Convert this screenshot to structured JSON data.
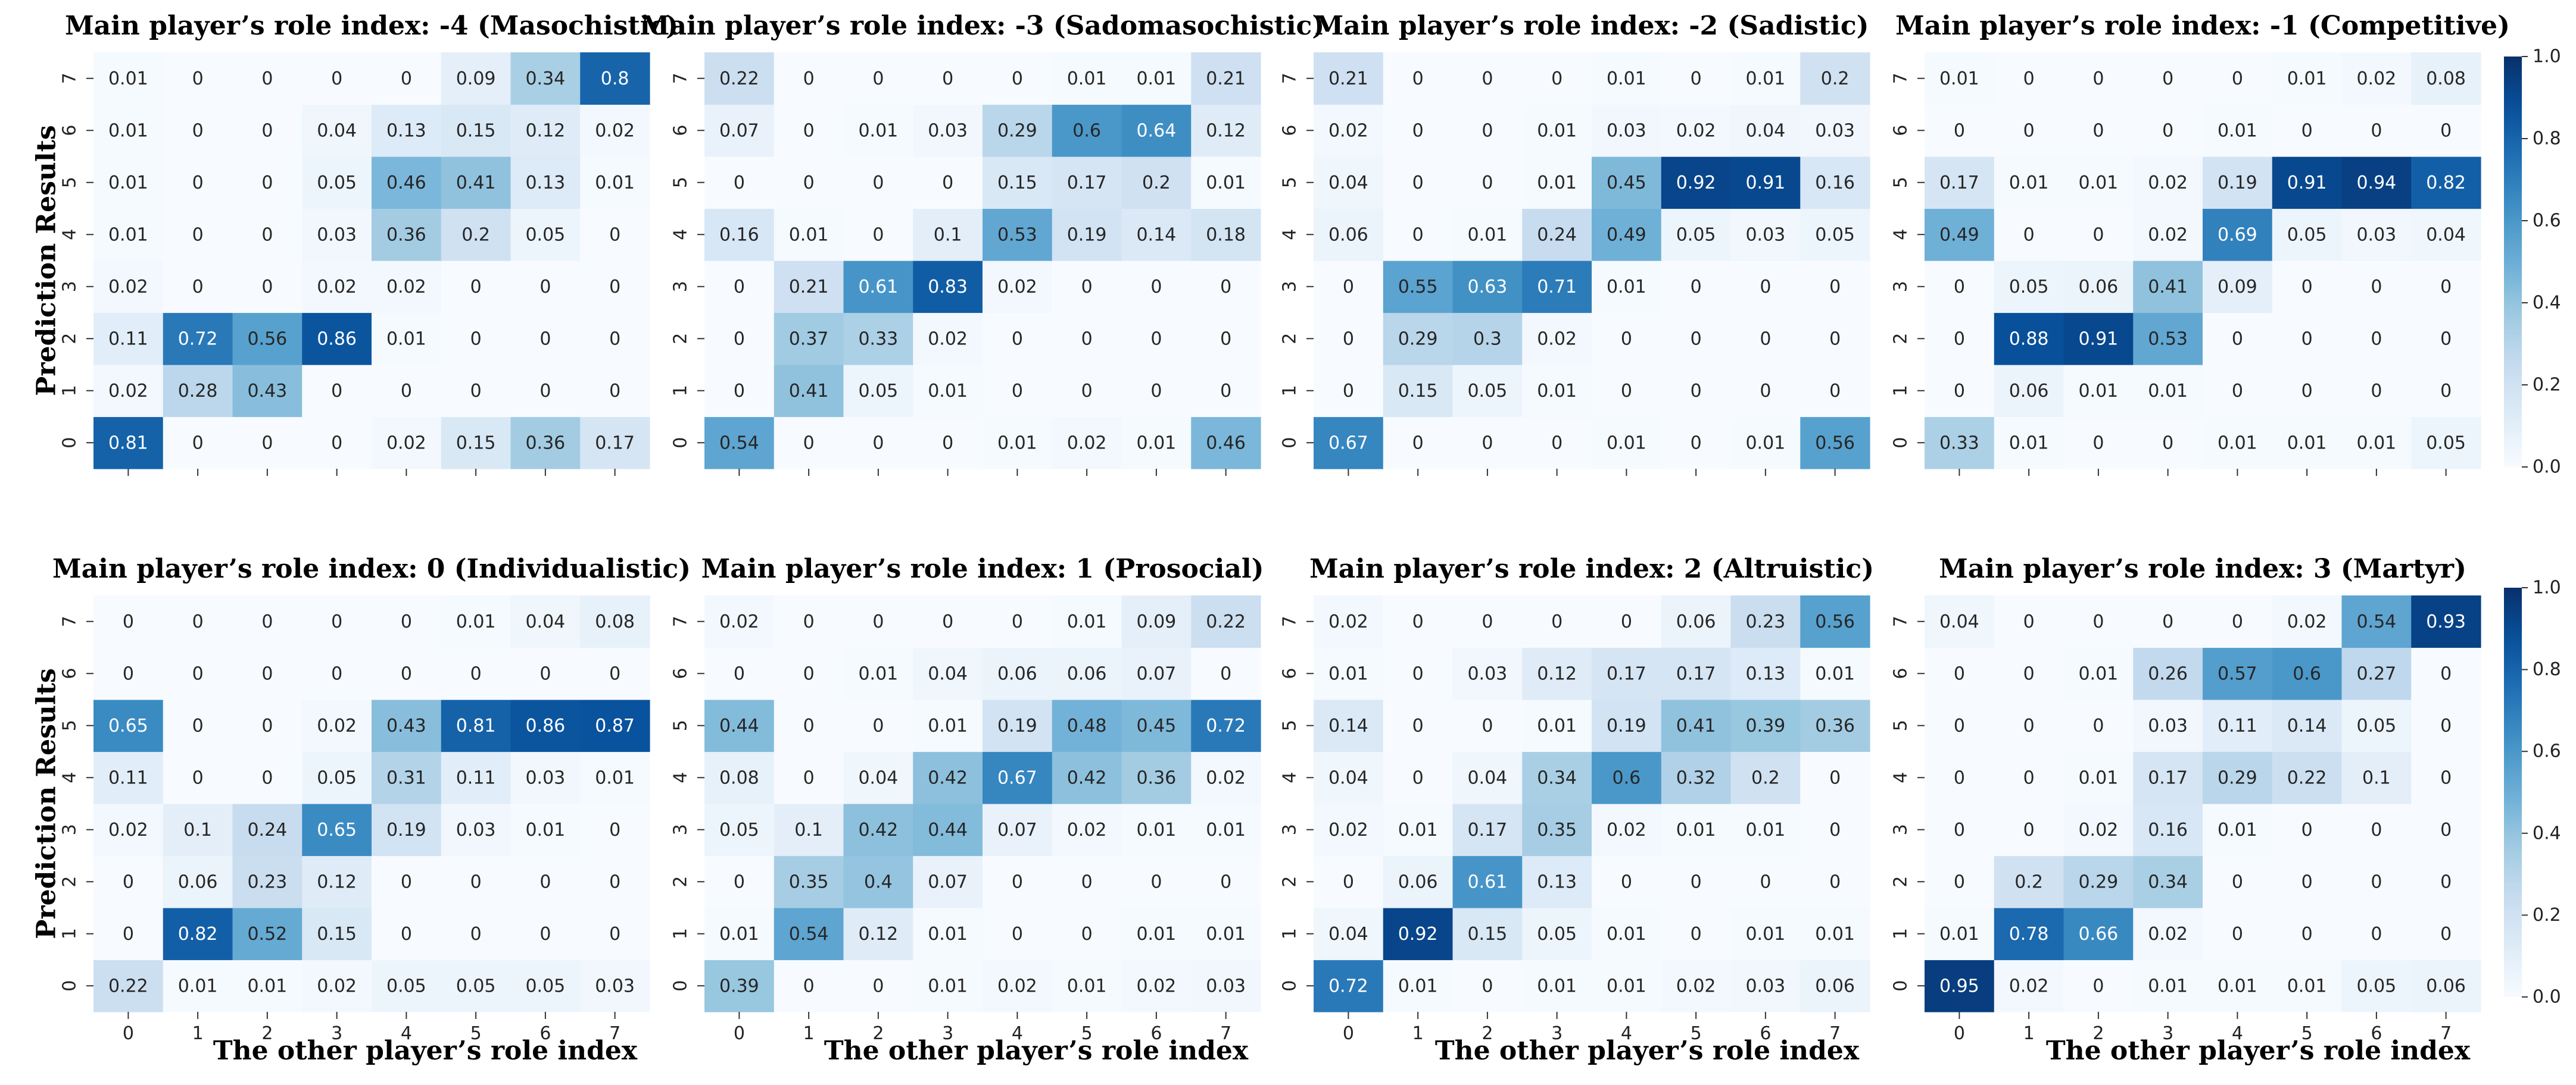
{
  "chart_data": [
    {
      "type": "heatmap",
      "title": "Main player’s role index: -4 (Masochistic)",
      "xlabel": "",
      "ylabel": "Prediction Results",
      "x_categories": [
        "0",
        "1",
        "2",
        "3",
        "4",
        "5",
        "6",
        "7"
      ],
      "y_categories": [
        "0",
        "1",
        "2",
        "3",
        "4",
        "5",
        "6",
        "7"
      ],
      "x_tick_labels_shown": false,
      "values": [
        [
          0.81,
          0,
          0,
          0,
          0.02,
          0.15,
          0.36,
          0.17
        ],
        [
          0.02,
          0.28,
          0.43,
          0,
          0,
          0,
          0,
          0
        ],
        [
          0.11,
          0.72,
          0.56,
          0.86,
          0.01,
          0,
          0,
          0
        ],
        [
          0.02,
          0,
          0,
          0.02,
          0.02,
          0,
          0,
          0
        ],
        [
          0.01,
          0,
          0,
          0.03,
          0.36,
          0.2,
          0.05,
          0
        ],
        [
          0.01,
          0,
          0,
          0.05,
          0.46,
          0.41,
          0.13,
          0.01
        ],
        [
          0.01,
          0,
          0,
          0.04,
          0.13,
          0.15,
          0.12,
          0.02
        ],
        [
          0.01,
          0,
          0,
          0,
          0,
          0.09,
          0.34,
          0.8
        ]
      ]
    },
    {
      "type": "heatmap",
      "title": "Main player’s role index: -3 (Sadomasochistic)",
      "xlabel": "",
      "ylabel": "",
      "x_categories": [
        "0",
        "1",
        "2",
        "3",
        "4",
        "5",
        "6",
        "7"
      ],
      "y_categories": [
        "0",
        "1",
        "2",
        "3",
        "4",
        "5",
        "6",
        "7"
      ],
      "x_tick_labels_shown": false,
      "values": [
        [
          0.54,
          0,
          0,
          0,
          0.01,
          0.02,
          0.01,
          0.46
        ],
        [
          0,
          0.41,
          0.05,
          0.01,
          0,
          0,
          0,
          0
        ],
        [
          0,
          0.37,
          0.33,
          0.02,
          0,
          0,
          0,
          0
        ],
        [
          0,
          0.21,
          0.61,
          0.83,
          0.02,
          0,
          0,
          0
        ],
        [
          0.16,
          0.01,
          0,
          0.1,
          0.53,
          0.19,
          0.14,
          0.18
        ],
        [
          0,
          0,
          0,
          0,
          0.15,
          0.17,
          0.2,
          0.01
        ],
        [
          0.07,
          0,
          0.01,
          0.03,
          0.29,
          0.6,
          0.64,
          0.12
        ],
        [
          0.22,
          0,
          0,
          0,
          0,
          0.01,
          0.01,
          0.21
        ]
      ]
    },
    {
      "type": "heatmap",
      "title": "Main player’s role index: -2 (Sadistic)",
      "xlabel": "",
      "ylabel": "",
      "x_categories": [
        "0",
        "1",
        "2",
        "3",
        "4",
        "5",
        "6",
        "7"
      ],
      "y_categories": [
        "0",
        "1",
        "2",
        "3",
        "4",
        "5",
        "6",
        "7"
      ],
      "x_tick_labels_shown": false,
      "values": [
        [
          0.67,
          0,
          0,
          0,
          0.01,
          0,
          0.01,
          0.56
        ],
        [
          0,
          0.15,
          0.05,
          0.01,
          0,
          0,
          0,
          0
        ],
        [
          0,
          0.29,
          0.3,
          0.02,
          0,
          0,
          0,
          0
        ],
        [
          0,
          0.55,
          0.63,
          0.71,
          0.01,
          0,
          0,
          0
        ],
        [
          0.06,
          0,
          0.01,
          0.24,
          0.49,
          0.05,
          0.03,
          0.05
        ],
        [
          0.04,
          0,
          0,
          0.01,
          0.45,
          0.92,
          0.91,
          0.16
        ],
        [
          0.02,
          0,
          0,
          0.01,
          0.03,
          0.02,
          0.04,
          0.03
        ],
        [
          0.21,
          0,
          0,
          0,
          0.01,
          0,
          0.01,
          0.2
        ]
      ]
    },
    {
      "type": "heatmap",
      "title": "Main player’s role index: -1 (Competitive)",
      "xlabel": "",
      "ylabel": "",
      "x_categories": [
        "0",
        "1",
        "2",
        "3",
        "4",
        "5",
        "6",
        "7"
      ],
      "y_categories": [
        "0",
        "1",
        "2",
        "3",
        "4",
        "5",
        "6",
        "7"
      ],
      "x_tick_labels_shown": false,
      "values": [
        [
          0.33,
          0.01,
          0,
          0,
          0.01,
          0.01,
          0.01,
          0.05
        ],
        [
          0,
          0.06,
          0.01,
          0.01,
          0,
          0,
          0,
          0
        ],
        [
          0,
          0.88,
          0.91,
          0.53,
          0,
          0,
          0,
          0
        ],
        [
          0,
          0.05,
          0.06,
          0.41,
          0.09,
          0,
          0,
          0
        ],
        [
          0.49,
          0,
          0,
          0.02,
          0.69,
          0.05,
          0.03,
          0.04
        ],
        [
          0.17,
          0.01,
          0.01,
          0.02,
          0.19,
          0.91,
          0.94,
          0.82
        ],
        [
          0,
          0,
          0,
          0,
          0.01,
          0,
          0,
          0
        ],
        [
          0.01,
          0,
          0,
          0,
          0,
          0.01,
          0.02,
          0.08
        ]
      ]
    },
    {
      "type": "heatmap",
      "title": "Main player’s role index: 0 (Individualistic)",
      "xlabel": "The other player’s role index",
      "ylabel": "Prediction Results",
      "x_categories": [
        "0",
        "1",
        "2",
        "3",
        "4",
        "5",
        "6",
        "7"
      ],
      "y_categories": [
        "0",
        "1",
        "2",
        "3",
        "4",
        "5",
        "6",
        "7"
      ],
      "x_tick_labels_shown": true,
      "values": [
        [
          0.22,
          0.01,
          0.01,
          0.02,
          0.05,
          0.05,
          0.05,
          0.03
        ],
        [
          0,
          0.82,
          0.52,
          0.15,
          0,
          0,
          0,
          0
        ],
        [
          0,
          0.06,
          0.23,
          0.12,
          0,
          0,
          0,
          0
        ],
        [
          0.02,
          0.1,
          0.24,
          0.65,
          0.19,
          0.03,
          0.01,
          0
        ],
        [
          0.11,
          0,
          0,
          0.05,
          0.31,
          0.11,
          0.03,
          0.01
        ],
        [
          0.65,
          0,
          0,
          0.02,
          0.43,
          0.81,
          0.86,
          0.87
        ],
        [
          0,
          0,
          0,
          0,
          0,
          0,
          0,
          0
        ],
        [
          0,
          0,
          0,
          0,
          0,
          0.01,
          0.04,
          0.08
        ]
      ]
    },
    {
      "type": "heatmap",
      "title": "Main player’s role index: 1 (Prosocial)",
      "xlabel": "The other player’s role index",
      "ylabel": "",
      "x_categories": [
        "0",
        "1",
        "2",
        "3",
        "4",
        "5",
        "6",
        "7"
      ],
      "y_categories": [
        "0",
        "1",
        "2",
        "3",
        "4",
        "5",
        "6",
        "7"
      ],
      "x_tick_labels_shown": true,
      "values": [
        [
          0.39,
          0,
          0,
          0.01,
          0.02,
          0.01,
          0.02,
          0.03
        ],
        [
          0.01,
          0.54,
          0.12,
          0.01,
          0,
          0,
          0.01,
          0.01
        ],
        [
          0,
          0.35,
          0.4,
          0.07,
          0,
          0,
          0,
          0
        ],
        [
          0.05,
          0.1,
          0.42,
          0.44,
          0.07,
          0.02,
          0.01,
          0.01
        ],
        [
          0.08,
          0,
          0.04,
          0.42,
          0.67,
          0.42,
          0.36,
          0.02
        ],
        [
          0.44,
          0,
          0,
          0.01,
          0.19,
          0.48,
          0.45,
          0.72
        ],
        [
          0,
          0,
          0.01,
          0.04,
          0.06,
          0.06,
          0.07,
          0
        ],
        [
          0.02,
          0,
          0,
          0,
          0,
          0.01,
          0.09,
          0.22
        ]
      ]
    },
    {
      "type": "heatmap",
      "title": "Main player’s role index: 2 (Altruistic)",
      "xlabel": "The other player’s role index",
      "ylabel": "",
      "x_categories": [
        "0",
        "1",
        "2",
        "3",
        "4",
        "5",
        "6",
        "7"
      ],
      "y_categories": [
        "0",
        "1",
        "2",
        "3",
        "4",
        "5",
        "6",
        "7"
      ],
      "x_tick_labels_shown": true,
      "values": [
        [
          0.72,
          0.01,
          0,
          0.01,
          0.01,
          0.02,
          0.03,
          0.06
        ],
        [
          0.04,
          0.92,
          0.15,
          0.05,
          0.01,
          0,
          0.01,
          0.01
        ],
        [
          0,
          0.06,
          0.61,
          0.13,
          0,
          0,
          0,
          0
        ],
        [
          0.02,
          0.01,
          0.17,
          0.35,
          0.02,
          0.01,
          0.01,
          0
        ],
        [
          0.04,
          0,
          0.04,
          0.34,
          0.6,
          0.32,
          0.2,
          0
        ],
        [
          0.14,
          0,
          0,
          0.01,
          0.19,
          0.41,
          0.39,
          0.36
        ],
        [
          0.01,
          0,
          0.03,
          0.12,
          0.17,
          0.17,
          0.13,
          0.01
        ],
        [
          0.02,
          0,
          0,
          0,
          0,
          0.06,
          0.23,
          0.56
        ]
      ]
    },
    {
      "type": "heatmap",
      "title": "Main player’s role index: 3 (Martyr)",
      "xlabel": "The other player’s role index",
      "ylabel": "",
      "x_categories": [
        "0",
        "1",
        "2",
        "3",
        "4",
        "5",
        "6",
        "7"
      ],
      "y_categories": [
        "0",
        "1",
        "2",
        "3",
        "4",
        "5",
        "6",
        "7"
      ],
      "x_tick_labels_shown": true,
      "values": [
        [
          0.95,
          0.02,
          0,
          0.01,
          0.01,
          0.01,
          0.05,
          0.06
        ],
        [
          0.01,
          0.78,
          0.66,
          0.02,
          0,
          0,
          0,
          0
        ],
        [
          0,
          0.2,
          0.29,
          0.34,
          0,
          0,
          0,
          0
        ],
        [
          0,
          0,
          0.02,
          0.16,
          0.01,
          0,
          0,
          0
        ],
        [
          0,
          0,
          0.01,
          0.17,
          0.29,
          0.22,
          0.1,
          0
        ],
        [
          0,
          0,
          0,
          0.03,
          0.11,
          0.14,
          0.05,
          0
        ],
        [
          0,
          0,
          0.01,
          0.26,
          0.57,
          0.6,
          0.27,
          0
        ],
        [
          0.04,
          0,
          0,
          0,
          0,
          0.02,
          0.54,
          0.93
        ]
      ]
    }
  ],
  "colorbar": {
    "colormap": "Blues",
    "range": [
      0.0,
      1.0
    ],
    "tick_labels": [
      "0.0",
      "0.2",
      "0.4",
      "0.6",
      "0.8",
      "1.0"
    ],
    "light_color": "#f7fbff",
    "dark_color": "#08306b"
  }
}
